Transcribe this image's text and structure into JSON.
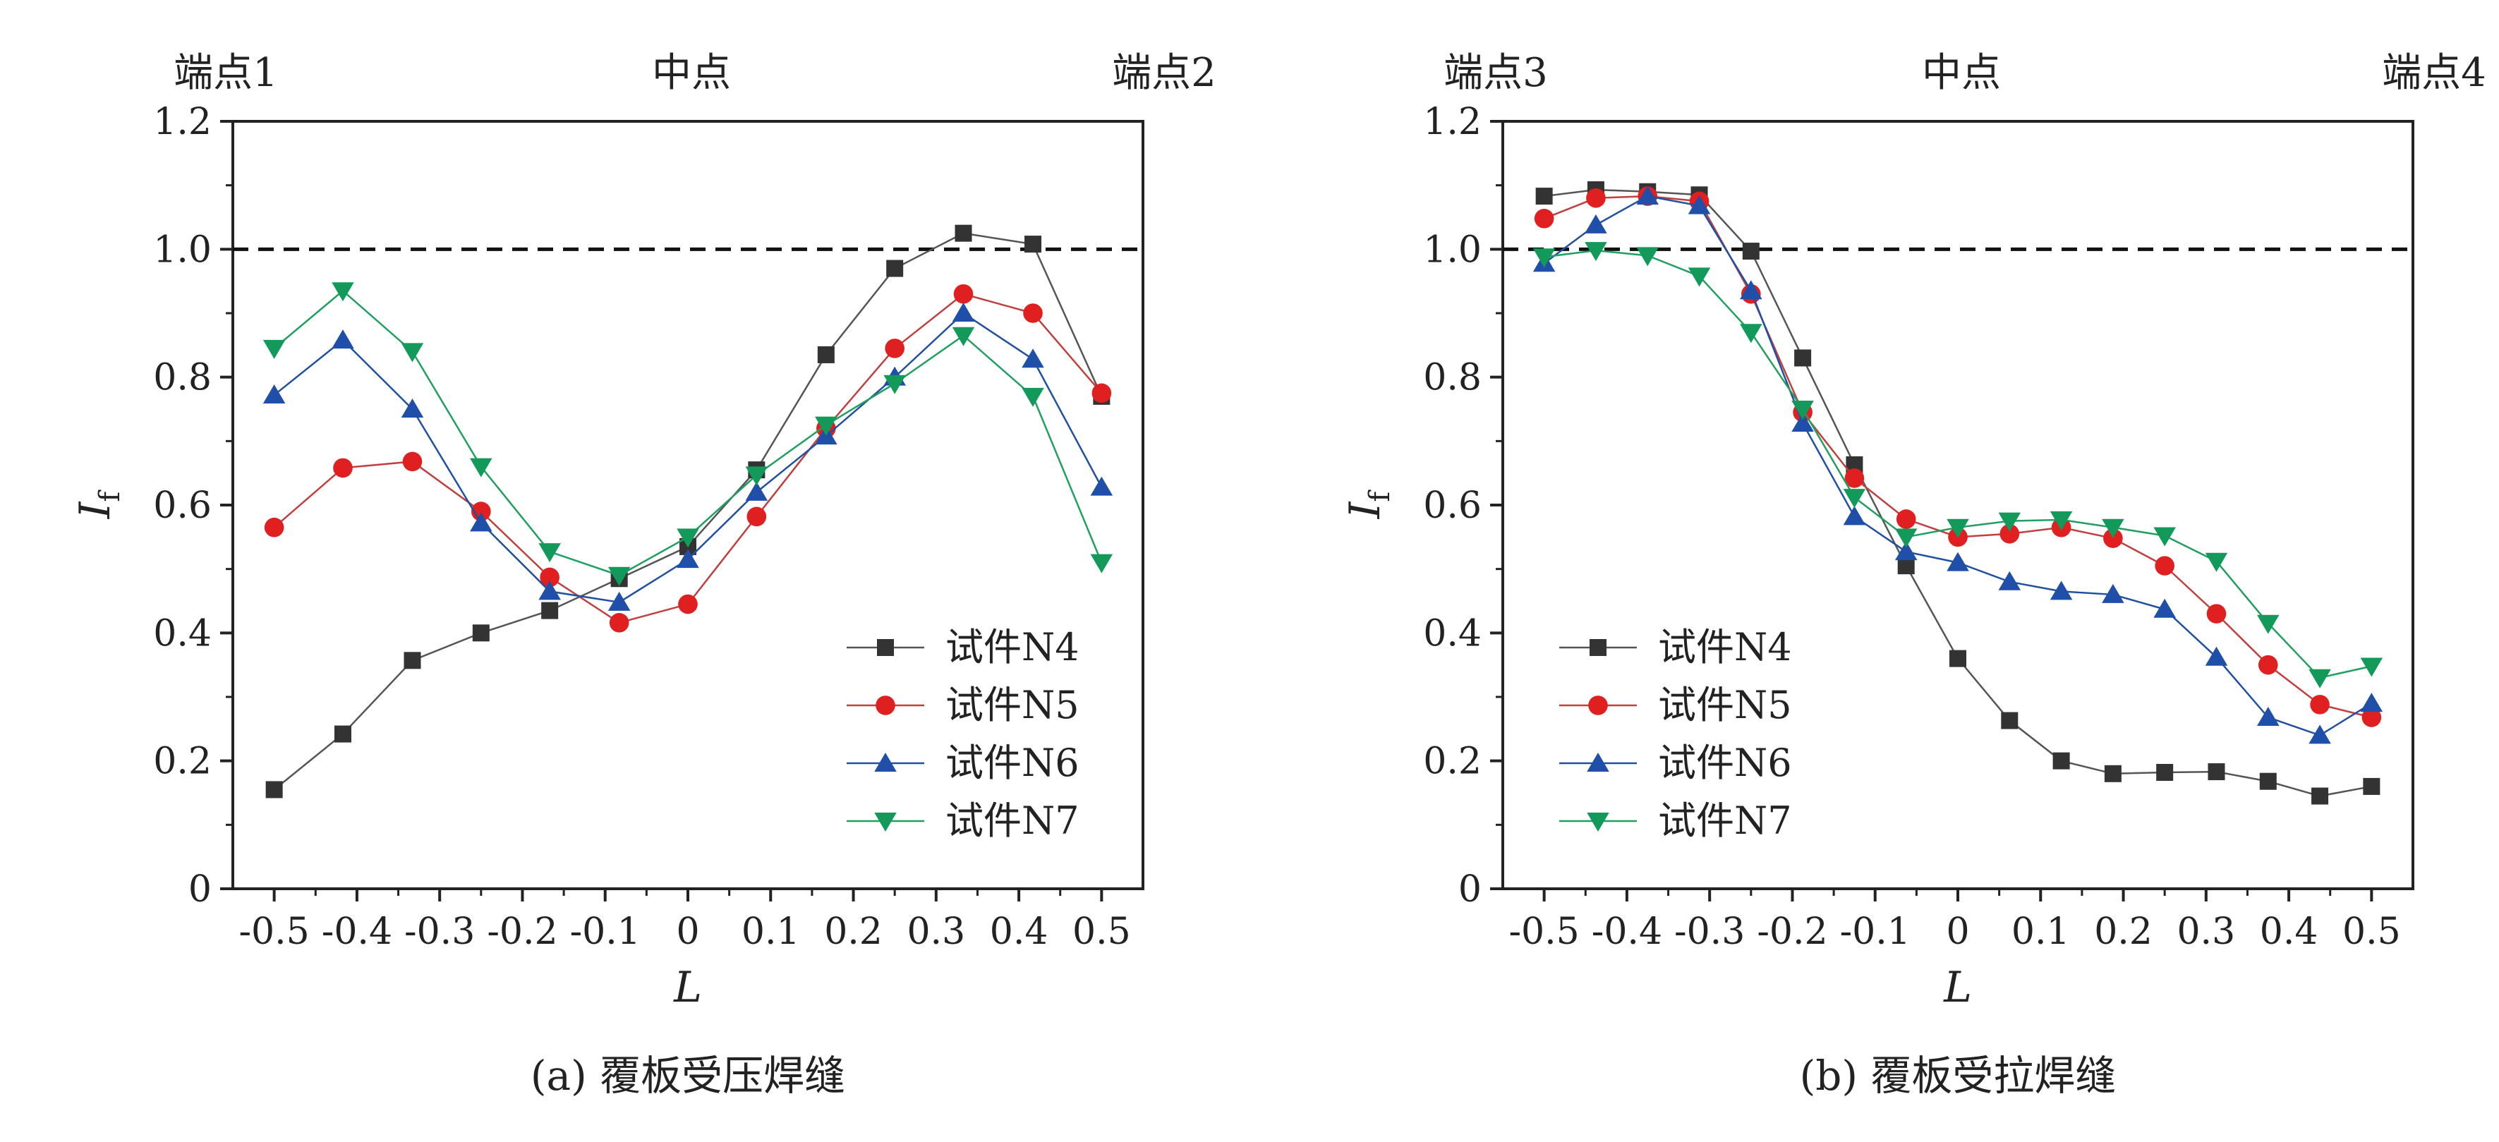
{
  "chart_data": [
    {
      "type": "line",
      "title": "(a) 覆板受压焊缝",
      "top_labels": [
        "端点1",
        "中点",
        "端点2"
      ],
      "xlabel": "L",
      "ylabel_main": "I",
      "ylabel_sub": "f",
      "xlim": [
        -0.55,
        0.55
      ],
      "ylim": [
        0,
        1.2
      ],
      "xticks": [
        -0.5,
        -0.4,
        -0.3,
        -0.2,
        -0.1,
        0,
        0.1,
        0.2,
        0.3,
        0.4,
        0.5
      ],
      "xtick_labels": [
        "-0.5",
        "-0.4",
        "-0.3",
        "-0.2",
        "-0.1",
        "0",
        "0.1",
        "0.2",
        "0.3",
        "0.4",
        "0.5"
      ],
      "yticks": [
        0,
        0.2,
        0.4,
        0.6,
        0.8,
        1.0,
        1.2
      ],
      "ytick_labels": [
        "0",
        "0.2",
        "0.4",
        "0.6",
        "0.8",
        "1.0",
        "1.2"
      ],
      "reference_line": {
        "y": 1.0,
        "style": "dashed"
      },
      "legend_position": "bottom-right",
      "x": [
        -0.5,
        -0.417,
        -0.333,
        -0.25,
        -0.167,
        -0.083,
        0,
        0.083,
        0.167,
        0.25,
        0.333,
        0.417,
        0.5
      ],
      "series": [
        {
          "name": "试件N4",
          "marker": "square",
          "color": "#333333",
          "line_color": "#555555",
          "values": [
            0.155,
            0.242,
            0.357,
            0.4,
            0.435,
            0.485,
            0.535,
            0.655,
            0.835,
            0.97,
            1.025,
            1.008,
            0.77
          ]
        },
        {
          "name": "试件N5",
          "marker": "circle",
          "color": "#e02020",
          "line_color": "#c04040",
          "values": [
            0.565,
            0.658,
            0.668,
            0.59,
            0.487,
            0.416,
            0.445,
            0.582,
            0.72,
            0.845,
            0.93,
            0.9,
            0.775
          ]
        },
        {
          "name": "试件N6",
          "marker": "triangle-up",
          "color": "#1f4fa8",
          "line_color": "#2050a0",
          "values": [
            0.772,
            0.858,
            0.75,
            0.572,
            0.465,
            0.448,
            0.515,
            0.62,
            0.708,
            0.8,
            0.9,
            0.828,
            0.628
          ]
        },
        {
          "name": "试件N7",
          "marker": "triangle-down",
          "color": "#139a5a",
          "line_color": "#20a060",
          "values": [
            0.845,
            0.935,
            0.84,
            0.66,
            0.527,
            0.49,
            0.55,
            0.647,
            0.725,
            0.79,
            0.865,
            0.77,
            0.51
          ]
        }
      ]
    },
    {
      "type": "line",
      "title": "(b) 覆板受拉焊缝",
      "top_labels": [
        "端点3",
        "中点",
        "端点4"
      ],
      "xlabel": "L",
      "ylabel_main": "I",
      "ylabel_sub": "f",
      "xlim": [
        -0.55,
        0.55
      ],
      "ylim": [
        0,
        1.2
      ],
      "xticks": [
        -0.5,
        -0.4,
        -0.3,
        -0.2,
        -0.1,
        0,
        0.1,
        0.2,
        0.3,
        0.4,
        0.5
      ],
      "xtick_labels": [
        "-0.5",
        "-0.4",
        "-0.3",
        "-0.2",
        "-0.1",
        "0",
        "0.1",
        "0.2",
        "0.3",
        "0.4",
        "0.5"
      ],
      "yticks": [
        0,
        0.2,
        0.4,
        0.6,
        0.8,
        1.0,
        1.2
      ],
      "ytick_labels": [
        "0",
        "0.2",
        "0.4",
        "0.6",
        "0.8",
        "1.0",
        "1.2"
      ],
      "reference_line": {
        "y": 1.0,
        "style": "dashed"
      },
      "legend_position": "bottom-left",
      "x": [
        -0.5,
        -0.4375,
        -0.375,
        -0.3125,
        -0.25,
        -0.1875,
        -0.125,
        -0.0625,
        0,
        0.0625,
        0.125,
        0.1875,
        0.25,
        0.3125,
        0.375,
        0.4375,
        0.5
      ],
      "series": [
        {
          "name": "试件N4",
          "marker": "square",
          "color": "#333333",
          "line_color": "#555555",
          "values": [
            1.083,
            1.093,
            1.09,
            1.085,
            0.997,
            0.83,
            0.663,
            0.505,
            0.36,
            0.263,
            0.2,
            0.18,
            0.182,
            0.183,
            0.168,
            0.145,
            0.16
          ]
        },
        {
          "name": "试件N5",
          "marker": "circle",
          "color": "#e02020",
          "line_color": "#c04040",
          "values": [
            1.048,
            1.08,
            1.083,
            1.075,
            0.93,
            0.745,
            0.642,
            0.578,
            0.55,
            0.555,
            0.565,
            0.548,
            0.505,
            0.43,
            0.35,
            0.288,
            0.268
          ]
        },
        {
          "name": "试件N6",
          "marker": "triangle-up",
          "color": "#1f4fa8",
          "line_color": "#2050a0",
          "values": [
            0.978,
            1.038,
            1.083,
            1.068,
            0.935,
            0.728,
            0.582,
            0.527,
            0.51,
            0.48,
            0.465,
            0.46,
            0.437,
            0.362,
            0.268,
            0.24,
            0.29
          ]
        },
        {
          "name": "试件N7",
          "marker": "triangle-down",
          "color": "#139a5a",
          "line_color": "#20a060",
          "values": [
            0.988,
            0.998,
            0.99,
            0.958,
            0.87,
            0.75,
            0.612,
            0.55,
            0.565,
            0.575,
            0.577,
            0.565,
            0.552,
            0.512,
            0.415,
            0.33,
            0.348
          ]
        }
      ]
    }
  ]
}
